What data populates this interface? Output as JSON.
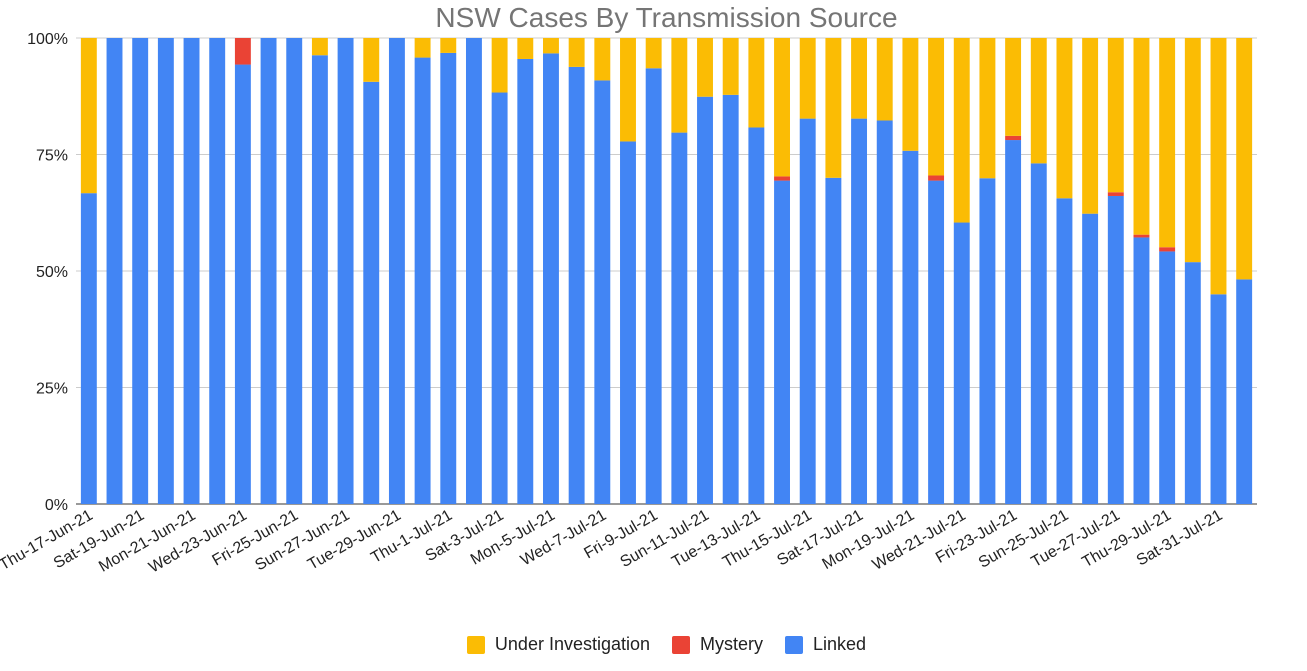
{
  "chart_data": {
    "type": "bar",
    "stacked": "percent",
    "title": "NSW Cases By Transmission Source",
    "xlabel": "",
    "ylabel": "",
    "ylim": [
      0,
      1
    ],
    "yticks": [
      "0%",
      "25%",
      "50%",
      "75%",
      "100%"
    ],
    "grid": true,
    "legend_position": "bottom",
    "colors": {
      "Under Investigation": "#fbbc04",
      "Mystery": "#ea4335",
      "Linked": "#4285f4"
    },
    "categories": [
      "Thu-17-Jun-21",
      "Fri-18-Jun-21",
      "Sat-19-Jun-21",
      "Sun-20-Jun-21",
      "Mon-21-Jun-21",
      "Tue-22-Jun-21",
      "Wed-23-Jun-21",
      "Thu-24-Jun-21",
      "Fri-25-Jun-21",
      "Sat-26-Jun-21",
      "Sun-27-Jun-21",
      "Mon-28-Jun-21",
      "Tue-29-Jun-21",
      "Wed-30-Jun-21",
      "Thu-1-Jul-21",
      "Fri-2-Jul-21",
      "Sat-3-Jul-21",
      "Sun-4-Jul-21",
      "Mon-5-Jul-21",
      "Tue-6-Jul-21",
      "Wed-7-Jul-21",
      "Thu-8-Jul-21",
      "Fri-9-Jul-21",
      "Sat-10-Jul-21",
      "Sun-11-Jul-21",
      "Mon-12-Jul-21",
      "Tue-13-Jul-21",
      "Wed-14-Jul-21",
      "Thu-15-Jul-21",
      "Fri-16-Jul-21",
      "Sat-17-Jul-21",
      "Sun-18-Jul-21",
      "Mon-19-Jul-21",
      "Tue-20-Jul-21",
      "Wed-21-Jul-21",
      "Thu-22-Jul-21",
      "Fri-23-Jul-21",
      "Sat-24-Jul-21",
      "Sun-25-Jul-21",
      "Mon-26-Jul-21",
      "Tue-27-Jul-21",
      "Wed-28-Jul-21",
      "Thu-29-Jul-21",
      "Fri-30-Jul-21",
      "Sat-31-Jul-21",
      "Sun-1-Aug-21"
    ],
    "shown_xtick_indices": [
      0,
      2,
      4,
      6,
      8,
      10,
      12,
      14,
      16,
      18,
      20,
      22,
      24,
      26,
      28,
      30,
      32,
      34,
      36,
      38,
      40,
      42,
      44
    ],
    "series": [
      {
        "name": "Linked",
        "values": [
          0.667,
          1,
          1,
          1,
          1,
          1,
          0.943,
          1,
          1,
          0.963,
          1,
          0.906,
          1,
          0.958,
          0.968,
          1,
          0.883,
          0.955,
          0.967,
          0.938,
          0.909,
          0.778,
          0.935,
          0.797,
          0.874,
          0.878,
          0.808,
          0.694,
          0.827,
          0.7,
          0.827,
          0.823,
          0.758,
          0.694,
          0.604,
          0.699,
          0.781,
          0.731,
          0.656,
          0.623,
          0.661,
          0.572,
          0.542,
          0.519,
          0.45,
          0.482
        ]
      },
      {
        "name": "Mystery",
        "values": [
          0,
          0,
          0,
          0,
          0,
          0,
          0.057,
          0,
          0,
          0,
          0,
          0,
          0,
          0,
          0,
          0,
          0,
          0,
          0,
          0,
          0,
          0,
          0,
          0,
          0,
          0,
          0,
          0.009,
          0,
          0,
          0,
          0,
          0,
          0.011,
          0,
          0,
          0.009,
          0,
          0,
          0,
          0.008,
          0.006,
          0.009,
          0,
          0,
          0
        ]
      },
      {
        "name": "Under Investigation",
        "values": [
          0.333,
          0,
          0,
          0,
          0,
          0,
          0,
          0,
          0,
          0.037,
          0,
          0.094,
          0,
          0.042,
          0.032,
          0,
          0.117,
          0.045,
          0.033,
          0.062,
          0.091,
          0.222,
          0.065,
          0.203,
          0.126,
          0.122,
          0.192,
          0.297,
          0.173,
          0.3,
          0.173,
          0.177,
          0.242,
          0.295,
          0.396,
          0.301,
          0.21,
          0.269,
          0.344,
          0.377,
          0.331,
          0.422,
          0.449,
          0.481,
          0.55,
          0.518
        ]
      }
    ]
  }
}
